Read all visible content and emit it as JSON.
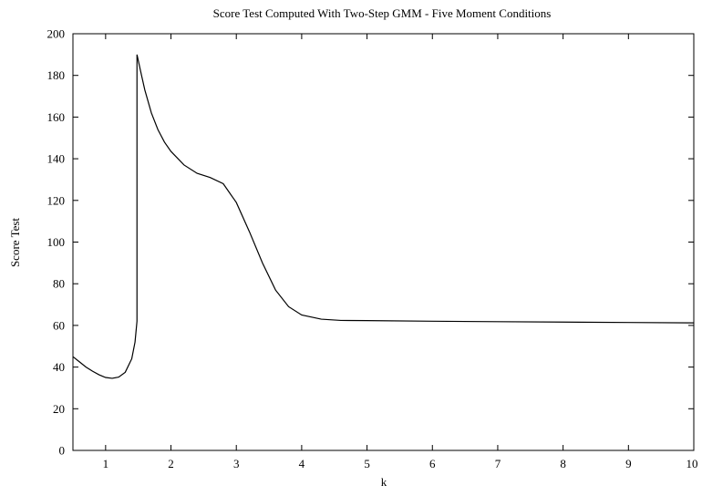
{
  "chart_data": {
    "type": "line",
    "title": "Score Test Computed With Two-Step GMM - Five Moment Conditions",
    "xlabel": "k",
    "ylabel": "Score Test",
    "xlim": [
      0.5,
      10
    ],
    "ylim": [
      0,
      200
    ],
    "xticks": [
      1,
      2,
      3,
      4,
      5,
      6,
      7,
      8,
      9,
      10
    ],
    "yticks": [
      0,
      20,
      40,
      60,
      80,
      100,
      120,
      140,
      160,
      180,
      200
    ],
    "grid": false,
    "legend": "none",
    "series": [
      {
        "color": "#000000",
        "points": [
          [
            0.5,
            45.0
          ],
          [
            0.6,
            42.5
          ],
          [
            0.7,
            40.0
          ],
          [
            0.8,
            38.0
          ],
          [
            0.9,
            36.3
          ],
          [
            1.0,
            35.0
          ],
          [
            1.1,
            34.6
          ],
          [
            1.2,
            35.2
          ],
          [
            1.3,
            37.5
          ],
          [
            1.4,
            44.0
          ],
          [
            1.45,
            52.0
          ],
          [
            1.48,
            62.0
          ],
          [
            1.48,
            190.0
          ],
          [
            1.55,
            180.0
          ],
          [
            1.6,
            173.0
          ],
          [
            1.7,
            162.0
          ],
          [
            1.8,
            154.0
          ],
          [
            1.9,
            148.0
          ],
          [
            2.0,
            143.5
          ],
          [
            2.2,
            137.0
          ],
          [
            2.4,
            133.0
          ],
          [
            2.6,
            131.0
          ],
          [
            2.8,
            128.0
          ],
          [
            3.0,
            119.0
          ],
          [
            3.2,
            105.0
          ],
          [
            3.4,
            90.0
          ],
          [
            3.6,
            77.0
          ],
          [
            3.8,
            69.0
          ],
          [
            4.0,
            65.0
          ],
          [
            4.3,
            63.0
          ],
          [
            4.6,
            62.4
          ],
          [
            5.0,
            62.3
          ],
          [
            6.0,
            62.0
          ],
          [
            7.0,
            61.8
          ],
          [
            8.0,
            61.6
          ],
          [
            9.0,
            61.4
          ],
          [
            10.0,
            61.2
          ]
        ]
      }
    ]
  }
}
